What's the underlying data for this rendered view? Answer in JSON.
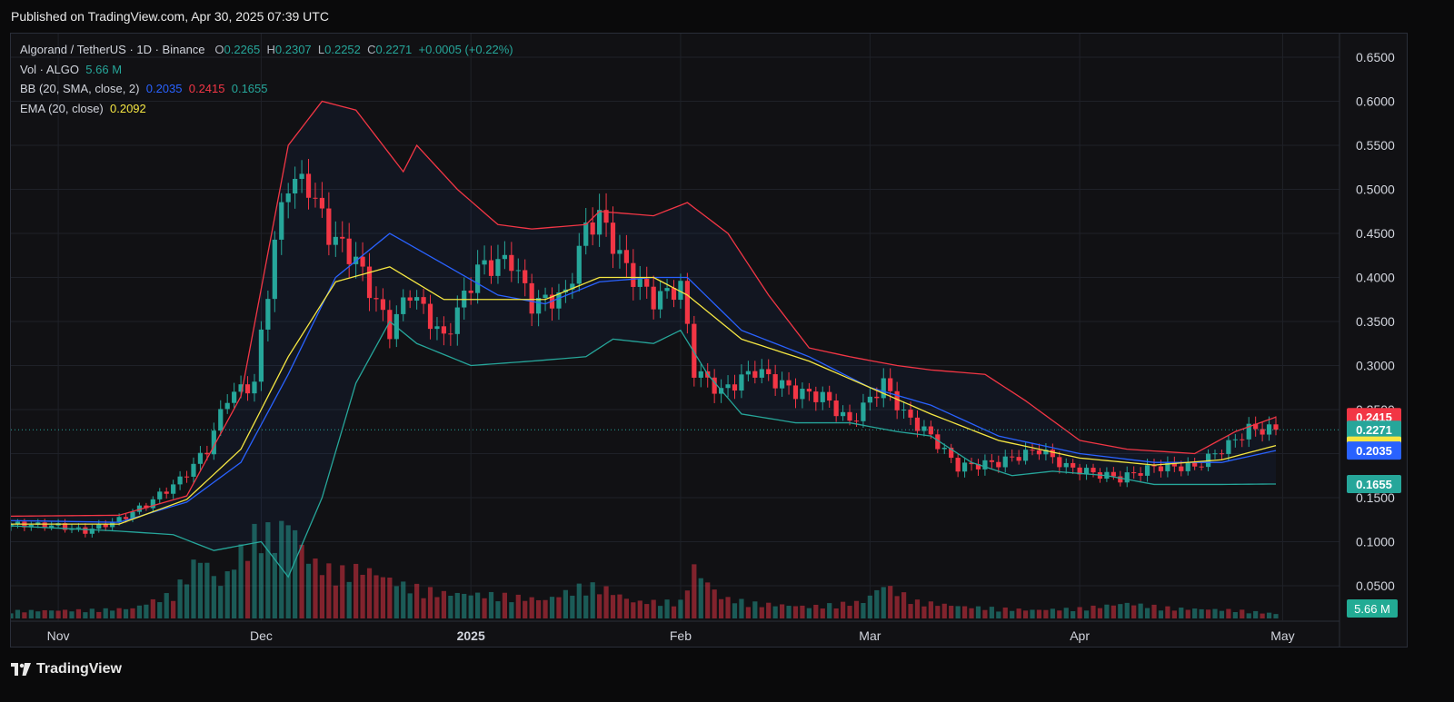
{
  "header": {
    "published": "Published on TradingView.com, Apr 30, 2025 07:39 UTC"
  },
  "legend": {
    "symbol": "Algorand / TetherUS · 1D · Binance",
    "o_label": "O",
    "o": "0.2265",
    "h_label": "H",
    "h": "0.2307",
    "l_label": "L",
    "l": "0.2252",
    "c_label": "C",
    "c": "0.2271",
    "change": "+0.0005 (+0.22%)",
    "vol_label": "Vol · ALGO",
    "vol": "5.66 M",
    "bb_label": "BB (20, SMA, close, 2)",
    "bb_basis": "0.2035",
    "bb_upper": "0.2415",
    "bb_lower": "0.1655",
    "ema_label": "EMA (20, close)",
    "ema": "0.2092"
  },
  "footer": {
    "brand": "TradingView"
  },
  "colors": {
    "up": "#26a69a",
    "down": "#f23645",
    "bb_upper": "#f23645",
    "bb_basis": "#2962ff",
    "bb_lower": "#26a69a",
    "ema": "#f5e642",
    "background": "#111114",
    "grid": "#1f2128"
  },
  "chart_data": {
    "type": "candlestick",
    "scale": "linear",
    "grid": true,
    "yticks": [
      "0.6500",
      "0.6000",
      "0.5500",
      "0.5000",
      "0.4500",
      "0.4000",
      "0.3500",
      "0.3000",
      "0.2500",
      "0.2000",
      "0.1500",
      "0.1000",
      "0.0500"
    ],
    "ylim": [
      0.0,
      0.67
    ],
    "xticks": [
      {
        "label": "Nov",
        "date": "2024-11-01"
      },
      {
        "label": "Dec",
        "date": "2024-12-01"
      },
      {
        "label": "2025",
        "date": "2025-01-01"
      },
      {
        "label": "Feb",
        "date": "2025-02-01"
      },
      {
        "label": "Mar",
        "date": "2025-03-01"
      },
      {
        "label": "Apr",
        "date": "2025-04-01"
      },
      {
        "label": "May",
        "date": "2025-05-01"
      }
    ],
    "price_badges": [
      {
        "value": "0.2415",
        "price": 0.2415,
        "color": "#f23645"
      },
      {
        "value": "0.2271",
        "price": 0.2271,
        "color": "#26a69a"
      },
      {
        "value": "0.2092",
        "price": 0.2092,
        "color": "#f5e642"
      },
      {
        "value": "0.2035",
        "price": 0.2035,
        "color": "#2962ff"
      },
      {
        "value": "0.1655",
        "price": 0.1655,
        "color": "#26a69a"
      }
    ],
    "volume_badge": "5.66 M",
    "first_date": "2024-10-25",
    "last_date": "2025-04-30",
    "series": [
      {
        "name": "Price",
        "points": [
          [
            "2024-10-25",
            0.12
          ],
          [
            "2024-11-01",
            0.118
          ],
          [
            "2024-11-05",
            0.112
          ],
          [
            "2024-11-10",
            0.125
          ],
          [
            "2024-11-14",
            0.142
          ],
          [
            "2024-11-19",
            0.17
          ],
          [
            "2024-11-23",
            0.205
          ],
          [
            "2024-11-26",
            0.265
          ],
          [
            "2024-11-30",
            0.28
          ],
          [
            "2024-12-03",
            0.44
          ],
          [
            "2024-12-05",
            0.51
          ],
          [
            "2024-12-08",
            0.505
          ],
          [
            "2024-12-11",
            0.45
          ],
          [
            "2024-12-15",
            0.42
          ],
          [
            "2024-12-20",
            0.34
          ],
          [
            "2024-12-23",
            0.385
          ],
          [
            "2024-12-28",
            0.33
          ],
          [
            "2025-01-02",
            0.41
          ],
          [
            "2025-01-07",
            0.42
          ],
          [
            "2025-01-10",
            0.37
          ],
          [
            "2025-01-15",
            0.38
          ],
          [
            "2025-01-18",
            0.455
          ],
          [
            "2025-01-20",
            0.47
          ],
          [
            "2025-01-24",
            0.41
          ],
          [
            "2025-01-28",
            0.375
          ],
          [
            "2025-02-01",
            0.39
          ],
          [
            "2025-02-03",
            0.295
          ],
          [
            "2025-02-07",
            0.27
          ],
          [
            "2025-02-12",
            0.295
          ],
          [
            "2025-02-18",
            0.27
          ],
          [
            "2025-02-22",
            0.265
          ],
          [
            "2025-02-26",
            0.235
          ],
          [
            "2025-03-03",
            0.28
          ],
          [
            "2025-03-06",
            0.245
          ],
          [
            "2025-03-10",
            0.22
          ],
          [
            "2025-03-14",
            0.185
          ],
          [
            "2025-03-20",
            0.19
          ],
          [
            "2025-03-26",
            0.205
          ],
          [
            "2025-03-30",
            0.185
          ],
          [
            "2025-04-03",
            0.178
          ],
          [
            "2025-04-07",
            0.172
          ],
          [
            "2025-04-12",
            0.185
          ],
          [
            "2025-04-18",
            0.185
          ],
          [
            "2025-04-23",
            0.21
          ],
          [
            "2025-04-26",
            0.228
          ],
          [
            "2025-04-30",
            0.2271
          ]
        ]
      },
      {
        "name": "BB Upper",
        "points": [
          [
            "2024-10-25",
            0.129
          ],
          [
            "2024-11-10",
            0.13
          ],
          [
            "2024-11-20",
            0.152
          ],
          [
            "2024-11-28",
            0.265
          ],
          [
            "2024-12-05",
            0.55
          ],
          [
            "2024-12-10",
            0.6
          ],
          [
            "2024-12-15",
            0.59
          ],
          [
            "2024-12-22",
            0.52
          ],
          [
            "2024-12-24",
            0.55
          ],
          [
            "2024-12-30",
            0.5
          ],
          [
            "2025-01-05",
            0.46
          ],
          [
            "2025-01-10",
            0.455
          ],
          [
            "2025-01-18",
            0.46
          ],
          [
            "2025-01-20",
            0.475
          ],
          [
            "2025-01-28",
            0.47
          ],
          [
            "2025-02-02",
            0.485
          ],
          [
            "2025-02-08",
            0.45
          ],
          [
            "2025-02-14",
            0.38
          ],
          [
            "2025-02-20",
            0.32
          ],
          [
            "2025-02-26",
            0.31
          ],
          [
            "2025-03-05",
            0.3
          ],
          [
            "2025-03-10",
            0.295
          ],
          [
            "2025-03-18",
            0.29
          ],
          [
            "2025-03-24",
            0.26
          ],
          [
            "2025-04-01",
            0.215
          ],
          [
            "2025-04-08",
            0.205
          ],
          [
            "2025-04-18",
            0.2
          ],
          [
            "2025-04-24",
            0.225
          ],
          [
            "2025-04-30",
            0.2415
          ]
        ]
      },
      {
        "name": "BB Basis",
        "points": [
          [
            "2024-10-25",
            0.124
          ],
          [
            "2024-11-10",
            0.122
          ],
          [
            "2024-11-20",
            0.145
          ],
          [
            "2024-11-28",
            0.19
          ],
          [
            "2024-12-05",
            0.29
          ],
          [
            "2024-12-12",
            0.4
          ],
          [
            "2024-12-20",
            0.45
          ],
          [
            "2024-12-28",
            0.415
          ],
          [
            "2025-01-05",
            0.38
          ],
          [
            "2025-01-12",
            0.37
          ],
          [
            "2025-01-20",
            0.395
          ],
          [
            "2025-01-28",
            0.4
          ],
          [
            "2025-02-02",
            0.4
          ],
          [
            "2025-02-10",
            0.34
          ],
          [
            "2025-02-20",
            0.31
          ],
          [
            "2025-03-01",
            0.275
          ],
          [
            "2025-03-10",
            0.255
          ],
          [
            "2025-03-20",
            0.22
          ],
          [
            "2025-04-01",
            0.2
          ],
          [
            "2025-04-12",
            0.19
          ],
          [
            "2025-04-22",
            0.19
          ],
          [
            "2025-04-30",
            0.2035
          ]
        ]
      },
      {
        "name": "BB Lower",
        "points": [
          [
            "2024-10-25",
            0.118
          ],
          [
            "2024-11-10",
            0.112
          ],
          [
            "2024-11-18",
            0.108
          ],
          [
            "2024-11-24",
            0.09
          ],
          [
            "2024-12-01",
            0.1
          ],
          [
            "2024-12-05",
            0.06
          ],
          [
            "2024-12-10",
            0.15
          ],
          [
            "2024-12-15",
            0.28
          ],
          [
            "2024-12-20",
            0.35
          ],
          [
            "2024-12-24",
            0.325
          ],
          [
            "2025-01-01",
            0.3
          ],
          [
            "2025-01-10",
            0.305
          ],
          [
            "2025-01-18",
            0.31
          ],
          [
            "2025-01-22",
            0.33
          ],
          [
            "2025-01-28",
            0.325
          ],
          [
            "2025-02-01",
            0.34
          ],
          [
            "2025-02-05",
            0.29
          ],
          [
            "2025-02-10",
            0.245
          ],
          [
            "2025-02-18",
            0.235
          ],
          [
            "2025-02-26",
            0.235
          ],
          [
            "2025-03-05",
            0.225
          ],
          [
            "2025-03-10",
            0.22
          ],
          [
            "2025-03-16",
            0.19
          ],
          [
            "2025-03-22",
            0.175
          ],
          [
            "2025-03-28",
            0.18
          ],
          [
            "2025-04-05",
            0.175
          ],
          [
            "2025-04-12",
            0.165
          ],
          [
            "2025-04-22",
            0.165
          ],
          [
            "2025-04-30",
            0.1655
          ]
        ]
      },
      {
        "name": "EMA",
        "points": [
          [
            "2024-10-25",
            0.12
          ],
          [
            "2024-11-10",
            0.12
          ],
          [
            "2024-11-20",
            0.148
          ],
          [
            "2024-11-28",
            0.205
          ],
          [
            "2024-12-05",
            0.31
          ],
          [
            "2024-12-12",
            0.395
          ],
          [
            "2024-12-20",
            0.412
          ],
          [
            "2024-12-28",
            0.375
          ],
          [
            "2025-01-05",
            0.375
          ],
          [
            "2025-01-12",
            0.375
          ],
          [
            "2025-01-20",
            0.4
          ],
          [
            "2025-01-28",
            0.4
          ],
          [
            "2025-02-02",
            0.38
          ],
          [
            "2025-02-10",
            0.33
          ],
          [
            "2025-02-20",
            0.305
          ],
          [
            "2025-03-01",
            0.275
          ],
          [
            "2025-03-10",
            0.245
          ],
          [
            "2025-03-20",
            0.215
          ],
          [
            "2025-04-01",
            0.195
          ],
          [
            "2025-04-12",
            0.187
          ],
          [
            "2025-04-22",
            0.193
          ],
          [
            "2025-04-30",
            0.2092
          ]
        ]
      },
      {
        "name": "Volume",
        "points": [
          [
            "2024-10-25",
            9
          ],
          [
            "2024-11-05",
            10
          ],
          [
            "2024-11-12",
            12
          ],
          [
            "2024-11-18",
            30
          ],
          [
            "2024-11-22",
            75
          ],
          [
            "2024-11-25",
            40
          ],
          [
            "2024-11-28",
            80
          ],
          [
            "2024-12-01",
            110
          ],
          [
            "2024-12-03",
            95
          ],
          [
            "2024-12-05",
            120
          ],
          [
            "2024-12-08",
            70
          ],
          [
            "2024-12-12",
            55
          ],
          [
            "2024-12-16",
            60
          ],
          [
            "2024-12-22",
            40
          ],
          [
            "2024-12-28",
            30
          ],
          [
            "2025-01-05",
            28
          ],
          [
            "2025-01-12",
            22
          ],
          [
            "2025-01-18",
            40
          ],
          [
            "2025-01-21",
            35
          ],
          [
            "2025-01-25",
            20
          ],
          [
            "2025-02-01",
            20
          ],
          [
            "2025-02-03",
            60
          ],
          [
            "2025-02-07",
            25
          ],
          [
            "2025-02-12",
            18
          ],
          [
            "2025-02-20",
            14
          ],
          [
            "2025-02-28",
            20
          ],
          [
            "2025-03-03",
            40
          ],
          [
            "2025-03-08",
            20
          ],
          [
            "2025-03-15",
            14
          ],
          [
            "2025-03-25",
            10
          ],
          [
            "2025-04-01",
            12
          ],
          [
            "2025-04-08",
            18
          ],
          [
            "2025-04-15",
            12
          ],
          [
            "2025-04-24",
            10
          ],
          [
            "2025-04-30",
            5.66
          ]
        ]
      }
    ]
  }
}
